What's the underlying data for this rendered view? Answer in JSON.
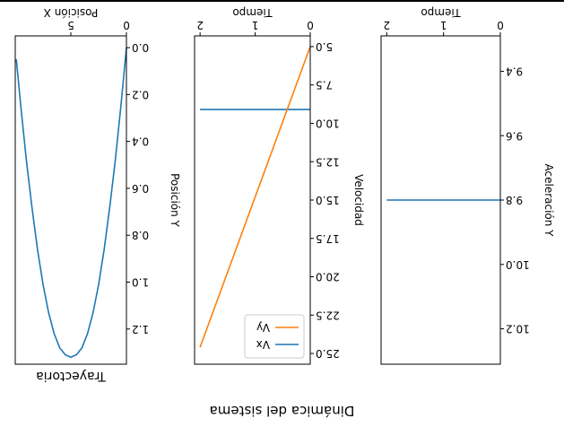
{
  "suptitle": "Dinámica del sistema",
  "colors": {
    "vx": "#1f77b4",
    "vy": "#ff7f0e",
    "trajectory": "#1f77b4",
    "accel": "#1f77b4"
  },
  "chart_data": [
    {
      "type": "line",
      "title": "Trayectoria",
      "xlabel": "Posición X",
      "ylabel": "Posición Y",
      "xlim": [
        0,
        10
      ],
      "ylim": [
        -0.05,
        1.35
      ],
      "x_ticks": [
        0,
        5
      ],
      "x_tick_labels": [
        "0",
        "5"
      ],
      "y_ticks": [
        0.0,
        0.2,
        0.4,
        0.6,
        0.8,
        1.0,
        1.2
      ],
      "y_tick_labels": [
        "0.0",
        "0.2",
        "0.4",
        "0.6",
        "0.8",
        "1.0",
        "1.2"
      ],
      "series": [
        {
          "x": [
            0,
            0.5,
            1,
            1.5,
            2,
            2.5,
            3,
            3.5,
            4,
            4.5,
            5,
            5.5,
            6,
            6.5,
            7,
            7.5,
            8,
            8.5,
            9,
            9.5,
            9.9
          ],
          "y": [
            0.0,
            0.25,
            0.48,
            0.68,
            0.86,
            1.01,
            1.13,
            1.22,
            1.28,
            1.31,
            1.32,
            1.31,
            1.28,
            1.22,
            1.13,
            1.01,
            0.86,
            0.68,
            0.48,
            0.25,
            0.05
          ]
        }
      ]
    },
    {
      "type": "line",
      "title": "",
      "xlabel": "Tiempo",
      "ylabel": "Velocidad",
      "xlim": [
        0,
        2.1
      ],
      "ylim": [
        4.3,
        25.7
      ],
      "x_ticks": [
        0,
        1,
        2
      ],
      "x_tick_labels": [
        "0",
        "1",
        "2"
      ],
      "y_ticks": [
        5.0,
        7.5,
        10.0,
        12.5,
        15.0,
        17.5,
        20.0,
        22.5,
        25.0
      ],
      "y_tick_labels": [
        "5.0",
        "7.5",
        "10.0",
        "12.5",
        "15.0",
        "17.5",
        "20.0",
        "22.5",
        "25.0"
      ],
      "legend": "bottom-right",
      "series": [
        {
          "name": "Vx",
          "x": [
            0,
            2.0
          ],
          "y": [
            9.1,
            9.1
          ]
        },
        {
          "name": "Vy",
          "x": [
            0,
            2.0
          ],
          "y": [
            5.0,
            24.6
          ]
        }
      ]
    },
    {
      "type": "line",
      "title": "",
      "xlabel": "Tiempo",
      "ylabel": "Aceleración Y",
      "xlim": [
        0,
        2.1
      ],
      "ylim": [
        9.29,
        10.31
      ],
      "x_ticks": [
        0,
        1,
        2
      ],
      "x_tick_labels": [
        "0",
        "1",
        "2"
      ],
      "y_ticks": [
        9.4,
        9.6,
        9.8,
        10.0,
        10.2
      ],
      "y_tick_labels": [
        "9.4",
        "9.6",
        "9.8",
        "10.0",
        "10.2"
      ],
      "series": [
        {
          "x": [
            0,
            2.0
          ],
          "y": [
            9.8,
            9.8
          ]
        }
      ]
    }
  ]
}
